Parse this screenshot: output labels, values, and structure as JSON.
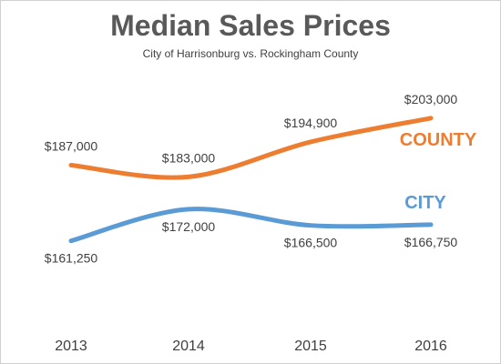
{
  "chart_data": {
    "type": "line",
    "title": "Median Sales Prices",
    "subtitle": "City of Harrisonburg vs. Rockingham County",
    "categories": [
      "2013",
      "2014",
      "2015",
      "2016"
    ],
    "ylim": [
      150000,
      215000
    ],
    "grid": false,
    "legend": "none (series labels placed at right end of lines)",
    "series": [
      {
        "name": "COUNTY",
        "color": "#ED7D31",
        "values": [
          187000,
          183000,
          194900,
          203000
        ],
        "labels": [
          "$187,000",
          "$183,000",
          "$194,900",
          "$203,000"
        ]
      },
      {
        "name": "CITY",
        "color": "#5B9BD5",
        "values": [
          161250,
          172000,
          166500,
          166750
        ],
        "labels": [
          "$161,250",
          "$172,000",
          "$166,500",
          "$166,750"
        ]
      }
    ]
  }
}
